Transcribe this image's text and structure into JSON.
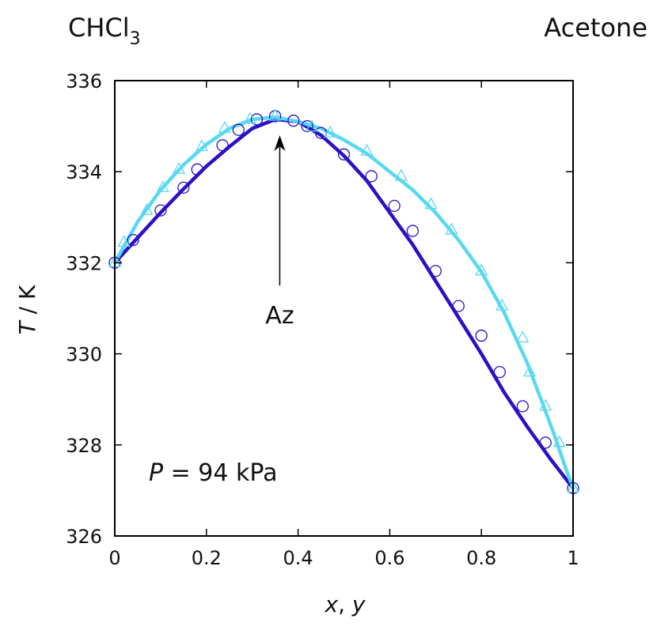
{
  "chart_data": {
    "type": "line",
    "corner_labels": {
      "left": "CHCl",
      "left_sub": "3",
      "right": "Acetone"
    },
    "xlabel": {
      "italic1": "x",
      "sep": ", ",
      "italic2": "y"
    },
    "ylabel": {
      "italic": "T",
      "rest": " / K"
    },
    "xlim": [
      0,
      1
    ],
    "ylim": [
      326,
      336
    ],
    "xticks": [
      0,
      0.2,
      0.4,
      0.6,
      0.8,
      1
    ],
    "xtick_labels": [
      "0",
      "0.2",
      "0.4",
      "0.6",
      "0.8",
      "1"
    ],
    "yticks": [
      326,
      328,
      330,
      332,
      334,
      336
    ],
    "ytick_labels": [
      "326",
      "328",
      "330",
      "332",
      "334",
      "336"
    ],
    "grid": false,
    "pressure_label": {
      "italic": "P",
      "rest": " = 94 kPa"
    },
    "annotation": {
      "text": "Az",
      "arrow_x": 0.36,
      "arrow_tip_y": 334.8,
      "arrow_tail_y": 331.5
    },
    "colors": {
      "liquid": "#2a12c4",
      "vapor": "#5ad8f2",
      "axis": "#000000"
    },
    "series": [
      {
        "kind": "model-liquid",
        "x": [
          0,
          0.05,
          0.1,
          0.15,
          0.2,
          0.25,
          0.3,
          0.35,
          0.4,
          0.45,
          0.5,
          0.55,
          0.6,
          0.65,
          0.7,
          0.75,
          0.8,
          0.85,
          0.9,
          0.95,
          1.0
        ],
        "y": [
          332.0,
          332.55,
          333.1,
          333.62,
          334.12,
          334.55,
          334.95,
          335.15,
          335.1,
          334.8,
          334.35,
          333.8,
          333.1,
          332.4,
          331.6,
          330.8,
          330.0,
          329.15,
          328.4,
          327.7,
          327.05
        ]
      },
      {
        "kind": "model-vapor",
        "x": [
          0,
          0.05,
          0.1,
          0.15,
          0.2,
          0.25,
          0.3,
          0.35,
          0.4,
          0.45,
          0.5,
          0.55,
          0.6,
          0.65,
          0.7,
          0.75,
          0.8,
          0.85,
          0.9,
          0.93,
          0.96,
          0.98,
          1.0
        ],
        "y": [
          332.0,
          332.9,
          333.6,
          334.15,
          334.6,
          334.95,
          335.15,
          335.2,
          335.1,
          334.95,
          334.7,
          334.4,
          334.0,
          333.6,
          333.1,
          332.5,
          331.8,
          330.9,
          329.8,
          329.0,
          328.2,
          327.6,
          327.05
        ]
      },
      {
        "kind": "exp-liquid",
        "marker": "circle",
        "x": [
          0,
          0.04,
          0.1,
          0.15,
          0.18,
          0.235,
          0.27,
          0.31,
          0.35,
          0.39,
          0.42,
          0.45,
          0.5,
          0.56,
          0.61,
          0.65,
          0.7,
          0.75,
          0.8,
          0.84,
          0.89,
          0.94,
          1.0
        ],
        "y": [
          332.0,
          332.5,
          333.15,
          333.65,
          334.05,
          334.58,
          334.92,
          335.15,
          335.22,
          335.12,
          335.0,
          334.85,
          334.38,
          333.9,
          333.25,
          332.7,
          331.82,
          331.05,
          330.4,
          329.6,
          328.85,
          328.05,
          327.05
        ]
      },
      {
        "kind": "exp-vapor",
        "marker": "triangle",
        "x": [
          0,
          0.02,
          0.07,
          0.105,
          0.14,
          0.19,
          0.24,
          0.295,
          0.35,
          0.43,
          0.47,
          0.55,
          0.625,
          0.69,
          0.735,
          0.8,
          0.845,
          0.89,
          0.905,
          0.94,
          0.97,
          1.0
        ],
        "y": [
          332.0,
          332.45,
          333.15,
          333.65,
          334.05,
          334.55,
          334.95,
          335.15,
          335.22,
          334.98,
          334.85,
          334.45,
          333.9,
          333.28,
          332.72,
          331.82,
          331.05,
          330.35,
          329.6,
          328.85,
          328.05,
          327.05
        ]
      }
    ]
  }
}
